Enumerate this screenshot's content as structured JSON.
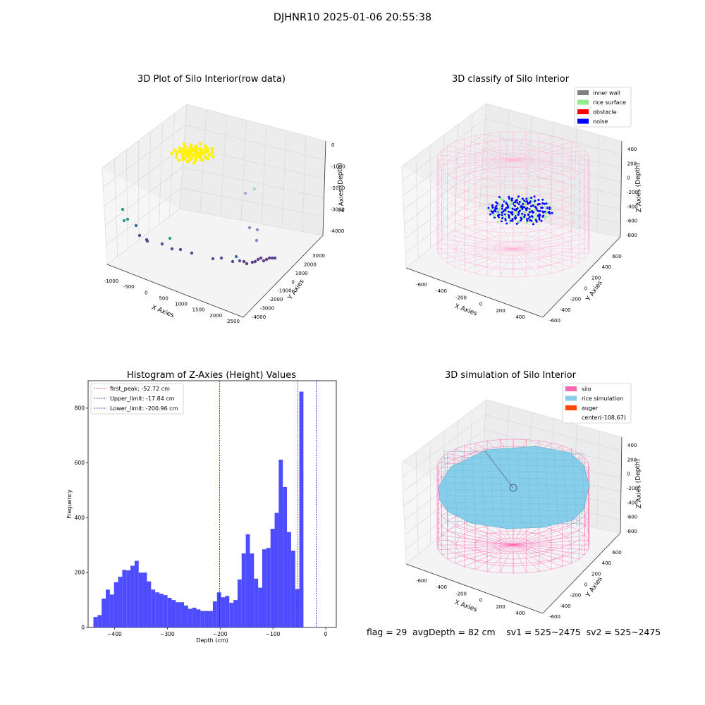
{
  "suptitle": "DJHNR10 2025-01-06 20:55:38",
  "stats_line": "flag = 29  avgDepth = 82 cm    sv1 = 525~2475  sv2 = 525~2475",
  "colors": {
    "hist_bar": "#4d4dff",
    "first_peak": "#ff0000",
    "upper_limit": "#0000cc",
    "lower_limit": "#0000cc",
    "inner_wall": "#808080",
    "rice_surface": "#90ee90",
    "obstacle": "#ff0000",
    "noise": "#0000ff",
    "silo": "#ff69b4",
    "rice_simulation": "#87ceeb",
    "auger": "#ff4500",
    "raw_points": "#fff200"
  },
  "chart_data": [
    {
      "type": "scatter",
      "title": "3D Plot of Silo Interior(row data)",
      "xlabel": "X Axies",
      "ylabel": "Y Axies",
      "zlabel": "Z Axies (Depth)",
      "x_ticks": [
        -1000,
        -500,
        0,
        500,
        1000,
        1500,
        2000,
        2500
      ],
      "y_ticks": [
        -4000,
        -3000,
        -2000,
        -1000,
        0,
        1000,
        2000,
        3000
      ],
      "z_ticks": [
        -4000,
        -3000,
        -2000,
        -1000,
        0
      ],
      "description_points": "dense yellow cluster near top-left, sparse purple/teal points along lower-right edge"
    },
    {
      "type": "scatter",
      "title": "3D classify of Silo Interior",
      "xlabel": "X Axies",
      "ylabel": "Y Axies",
      "zlabel": "Z Axies (Depth)",
      "x_ticks": [
        -600,
        -400,
        -200,
        0,
        200,
        400
      ],
      "y_ticks": [
        -600,
        -400,
        -200,
        0,
        200,
        400,
        600
      ],
      "z_ticks": [
        -800,
        -600,
        -400,
        -200,
        0,
        200,
        400
      ],
      "legend": [
        "inner wall",
        "rice surface",
        "obstacle",
        "noise"
      ],
      "legend_position": "top-right"
    },
    {
      "type": "bar",
      "title": "Histogram of Z-Axies (Height) Values",
      "xlabel": "Depth (cm)",
      "ylabel": "Frequency",
      "xlim": [
        -450,
        20
      ],
      "ylim": [
        0,
        900
      ],
      "x_ticks": [
        -400,
        -300,
        -200,
        -100,
        0
      ],
      "y_ticks": [
        0,
        200,
        400,
        600,
        800
      ],
      "bin_start": -440,
      "bin_width": 7.8,
      "values": [
        38,
        45,
        105,
        138,
        120,
        165,
        185,
        210,
        208,
        225,
        243,
        200,
        200,
        168,
        138,
        128,
        123,
        118,
        108,
        100,
        92,
        92,
        80,
        68,
        72,
        66,
        60,
        60,
        60,
        95,
        128,
        110,
        115,
        90,
        100,
        175,
        270,
        340,
        270,
        178,
        145,
        285,
        290,
        360,
        418,
        612,
        512,
        348,
        280,
        140,
        860
      ],
      "vlines": [
        {
          "label": "first_peak: -52.72 cm",
          "x": -52.72,
          "color": "#ff0000"
        },
        {
          "label": "Upper_limit: -17.84 cm",
          "x": -17.84,
          "color": "#0000cc"
        },
        {
          "label": "Lower_limit: -200.96 cm",
          "x": -200.96,
          "color": "#0000cc"
        }
      ],
      "legend_position": "top-left"
    },
    {
      "type": "scatter",
      "title": "3D simulation of Silo Interior",
      "xlabel": "X Axies",
      "ylabel": "Y Axies",
      "zlabel": "Z Axies (Depth)",
      "x_ticks": [
        -600,
        -400,
        -200,
        0,
        200,
        400
      ],
      "y_ticks": [
        -600,
        -400,
        -200,
        0,
        200,
        400,
        600
      ],
      "z_ticks": [
        -800,
        -600,
        -400,
        -200,
        0,
        200,
        400
      ],
      "legend": [
        "silo",
        "rice simulation",
        "auger",
        "center(-108,67)"
      ],
      "legend_position": "top-right"
    }
  ]
}
